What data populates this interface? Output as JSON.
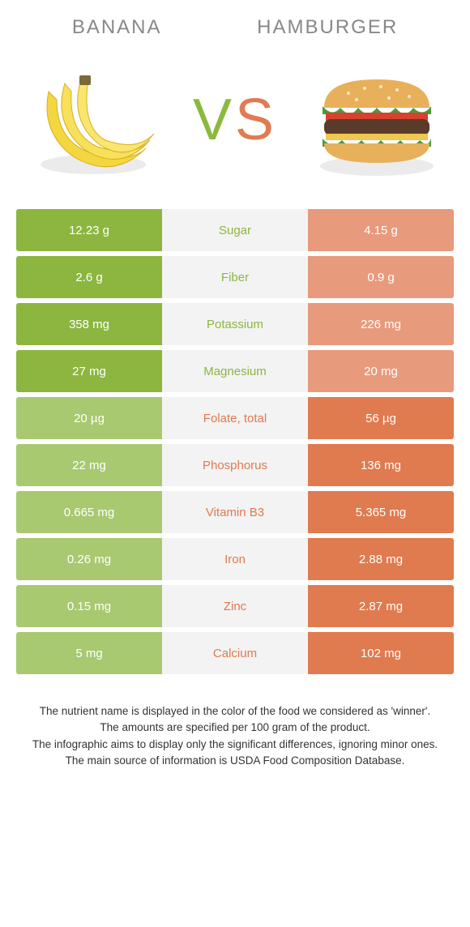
{
  "colors": {
    "left_main": "#8cb63f",
    "left_dim": "#a8c96f",
    "right_main": "#e07a4f",
    "right_dim": "#e89a7c",
    "mid_bg": "#f3f3f3",
    "title_color": "#999999"
  },
  "header": {
    "left_title": "Banana",
    "right_title": "Hamburger",
    "vs_v": "V",
    "vs_s": "S"
  },
  "rows": [
    {
      "label": "Sugar",
      "left": "12.23 g",
      "right": "4.15 g",
      "winner": "left"
    },
    {
      "label": "Fiber",
      "left": "2.6 g",
      "right": "0.9 g",
      "winner": "left"
    },
    {
      "label": "Potassium",
      "left": "358 mg",
      "right": "226 mg",
      "winner": "left"
    },
    {
      "label": "Magnesium",
      "left": "27 mg",
      "right": "20 mg",
      "winner": "left"
    },
    {
      "label": "Folate, total",
      "left": "20 µg",
      "right": "56 µg",
      "winner": "right"
    },
    {
      "label": "Phosphorus",
      "left": "22 mg",
      "right": "136 mg",
      "winner": "right"
    },
    {
      "label": "Vitamin B3",
      "left": "0.665 mg",
      "right": "5.365 mg",
      "winner": "right"
    },
    {
      "label": "Iron",
      "left": "0.26 mg",
      "right": "2.88 mg",
      "winner": "right"
    },
    {
      "label": "Zinc",
      "left": "0.15 mg",
      "right": "2.87 mg",
      "winner": "right"
    },
    {
      "label": "Calcium",
      "left": "5 mg",
      "right": "102 mg",
      "winner": "right"
    }
  ],
  "footer": {
    "line1": "The nutrient name is displayed in the color of the food we considered as 'winner'.",
    "line2": "The amounts are specified per 100 gram of the product.",
    "line3": "The infographic aims to display only the significant differences, ignoring minor ones.",
    "line4": "The main source of information is USDA Food Composition Database."
  }
}
